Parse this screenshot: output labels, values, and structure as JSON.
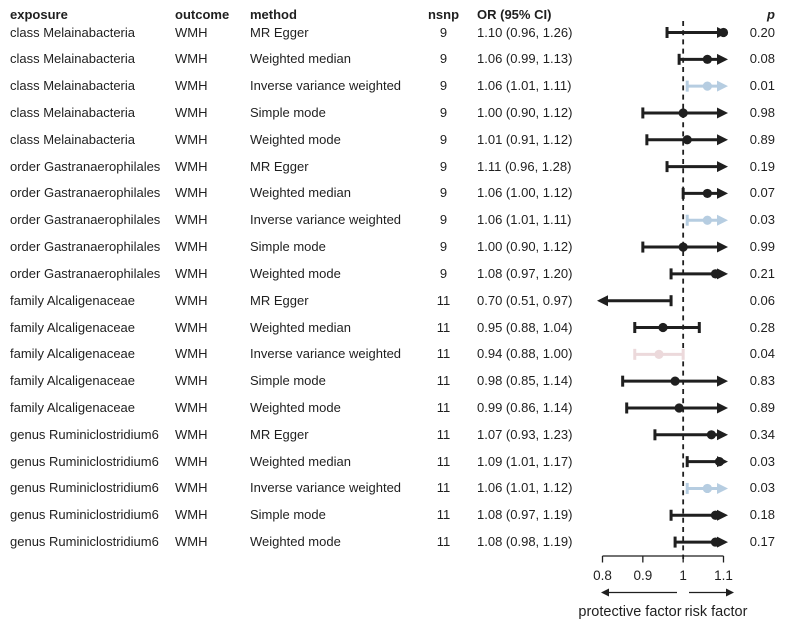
{
  "header": {
    "exposure": "exposure",
    "outcome": "outcome",
    "method": "method",
    "nsnp": "nsnp",
    "or_ci": "OR (95% CI)",
    "p": "p"
  },
  "chart_data": {
    "type": "forest",
    "x_axis": {
      "tick_labels": [
        "0.8",
        "0.9",
        "1",
        "1.1"
      ],
      "tick_values": [
        0.8,
        0.9,
        1.0,
        1.1
      ],
      "xlim": [
        0.8,
        1.1
      ],
      "reference_line": 1.0
    },
    "footer": {
      "left_label": "protective factor",
      "right_label": "risk factor"
    },
    "colors": {
      "black": "#1f1f1f",
      "blue": "#b6cde1",
      "pink": "#ecd9db"
    },
    "rows": [
      {
        "exposure": "class Melainabacteria",
        "outcome": "WMH",
        "method": "MR Egger",
        "nsnp": "9",
        "or_ci": "1.10 (0.96, 1.26)",
        "or": 1.1,
        "lo": 0.96,
        "hi": 1.26,
        "p": "0.20",
        "highlight": "black"
      },
      {
        "exposure": "class Melainabacteria",
        "outcome": "WMH",
        "method": "Weighted median",
        "nsnp": "9",
        "or_ci": "1.06 (0.99, 1.13)",
        "or": 1.06,
        "lo": 0.99,
        "hi": 1.13,
        "p": "0.08",
        "highlight": "black"
      },
      {
        "exposure": "class Melainabacteria",
        "outcome": "WMH",
        "method": "Inverse variance weighted",
        "nsnp": "9",
        "or_ci": "1.06 (1.01, 1.11)",
        "or": 1.06,
        "lo": 1.01,
        "hi": 1.11,
        "p": "0.01",
        "highlight": "blue"
      },
      {
        "exposure": "class Melainabacteria",
        "outcome": "WMH",
        "method": "Simple mode",
        "nsnp": "9",
        "or_ci": "1.00 (0.90, 1.12)",
        "or": 1.0,
        "lo": 0.9,
        "hi": 1.12,
        "p": "0.98",
        "highlight": "black"
      },
      {
        "exposure": "class Melainabacteria",
        "outcome": "WMH",
        "method": "Weighted mode",
        "nsnp": "9",
        "or_ci": "1.01 (0.91, 1.12)",
        "or": 1.01,
        "lo": 0.91,
        "hi": 1.12,
        "p": "0.89",
        "highlight": "black"
      },
      {
        "exposure": "order Gastranaerophilales",
        "outcome": "WMH",
        "method": "MR Egger",
        "nsnp": "9",
        "or_ci": "1.11 (0.96, 1.28)",
        "or": 1.11,
        "lo": 0.96,
        "hi": 1.28,
        "p": "0.19",
        "highlight": "black"
      },
      {
        "exposure": "order Gastranaerophilales",
        "outcome": "WMH",
        "method": "Weighted median",
        "nsnp": "9",
        "or_ci": "1.06 (1.00, 1.12)",
        "or": 1.06,
        "lo": 1.0,
        "hi": 1.12,
        "p": "0.07",
        "highlight": "black"
      },
      {
        "exposure": "order Gastranaerophilales",
        "outcome": "WMH",
        "method": "Inverse variance weighted",
        "nsnp": "9",
        "or_ci": "1.06 (1.01, 1.11)",
        "or": 1.06,
        "lo": 1.01,
        "hi": 1.11,
        "p": "0.03",
        "highlight": "blue"
      },
      {
        "exposure": "order Gastranaerophilales",
        "outcome": "WMH",
        "method": "Simple mode",
        "nsnp": "9",
        "or_ci": "1.00 (0.90, 1.12)",
        "or": 1.0,
        "lo": 0.9,
        "hi": 1.12,
        "p": "0.99",
        "highlight": "black"
      },
      {
        "exposure": "order Gastranaerophilales",
        "outcome": "WMH",
        "method": "Weighted mode",
        "nsnp": "9",
        "or_ci": "1.08 (0.97, 1.20)",
        "or": 1.08,
        "lo": 0.97,
        "hi": 1.2,
        "p": "0.21",
        "highlight": "black"
      },
      {
        "exposure": "family Alcaligenaceae",
        "outcome": "WMH",
        "method": "MR Egger",
        "nsnp": "11",
        "or_ci": "0.70 (0.51, 0.97)",
        "or": 0.7,
        "lo": 0.51,
        "hi": 0.97,
        "p": "0.06",
        "highlight": "black"
      },
      {
        "exposure": "family Alcaligenaceae",
        "outcome": "WMH",
        "method": "Weighted median",
        "nsnp": "11",
        "or_ci": "0.95 (0.88, 1.04)",
        "or": 0.95,
        "lo": 0.88,
        "hi": 1.04,
        "p": "0.28",
        "highlight": "black"
      },
      {
        "exposure": "family Alcaligenaceae",
        "outcome": "WMH",
        "method": "Inverse variance weighted",
        "nsnp": "11",
        "or_ci": "0.94 (0.88, 1.00)",
        "or": 0.94,
        "lo": 0.88,
        "hi": 1.0,
        "p": "0.04",
        "highlight": "pink"
      },
      {
        "exposure": "family Alcaligenaceae",
        "outcome": "WMH",
        "method": "Simple mode",
        "nsnp": "11",
        "or_ci": "0.98 (0.85, 1.14)",
        "or": 0.98,
        "lo": 0.85,
        "hi": 1.14,
        "p": "0.83",
        "highlight": "black"
      },
      {
        "exposure": "family Alcaligenaceae",
        "outcome": "WMH",
        "method": "Weighted mode",
        "nsnp": "11",
        "or_ci": "0.99 (0.86, 1.14)",
        "or": 0.99,
        "lo": 0.86,
        "hi": 1.14,
        "p": "0.89",
        "highlight": "black"
      },
      {
        "exposure": "genus Ruminiclostridium6",
        "outcome": "WMH",
        "method": "MR Egger",
        "nsnp": "11",
        "or_ci": "1.07 (0.93, 1.23)",
        "or": 1.07,
        "lo": 0.93,
        "hi": 1.23,
        "p": "0.34",
        "highlight": "black"
      },
      {
        "exposure": "genus Ruminiclostridium6",
        "outcome": "WMH",
        "method": "Weighted median",
        "nsnp": "11",
        "or_ci": "1.09 (1.01, 1.17)",
        "or": 1.09,
        "lo": 1.01,
        "hi": 1.17,
        "p": "0.03",
        "highlight": "black"
      },
      {
        "exposure": "genus Ruminiclostridium6",
        "outcome": "WMH",
        "method": "Inverse variance weighted",
        "nsnp": "11",
        "or_ci": "1.06 (1.01, 1.12)",
        "or": 1.06,
        "lo": 1.01,
        "hi": 1.12,
        "p": "0.03",
        "highlight": "blue"
      },
      {
        "exposure": "genus Ruminiclostridium6",
        "outcome": "WMH",
        "method": "Simple mode",
        "nsnp": "11",
        "or_ci": "1.08 (0.97, 1.19)",
        "or": 1.08,
        "lo": 0.97,
        "hi": 1.19,
        "p": "0.18",
        "highlight": "black"
      },
      {
        "exposure": "genus Ruminiclostridium6",
        "outcome": "WMH",
        "method": "Weighted mode",
        "nsnp": "11",
        "or_ci": "1.08 (0.98, 1.19)",
        "or": 1.08,
        "lo": 0.98,
        "hi": 1.19,
        "p": "0.17",
        "highlight": "black"
      }
    ]
  }
}
